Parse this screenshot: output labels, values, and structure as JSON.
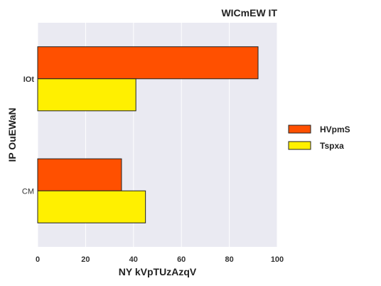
{
  "chart_data": {
    "type": "bar",
    "orientation": "horizontal",
    "title": "WICmEW IT",
    "xlabel": "NY kVpTUzAzqV",
    "ylabel": "IP OuEWaN",
    "categories": [
      "IOt",
      "CM"
    ],
    "xlim": [
      0,
      100
    ],
    "xticks": [
      0,
      20,
      40,
      60,
      80,
      100
    ],
    "grid": true,
    "legend_position": "right",
    "series": [
      {
        "name": "HVpmS",
        "values": [
          92,
          35
        ],
        "color": "#ff5000"
      },
      {
        "name": "Tspxa",
        "values": [
          41,
          45
        ],
        "color": "#fff000"
      }
    ],
    "colors": {
      "plot_background": "#eaeaf2",
      "grid": "#ffffff",
      "bar_edge": "#222222"
    }
  }
}
